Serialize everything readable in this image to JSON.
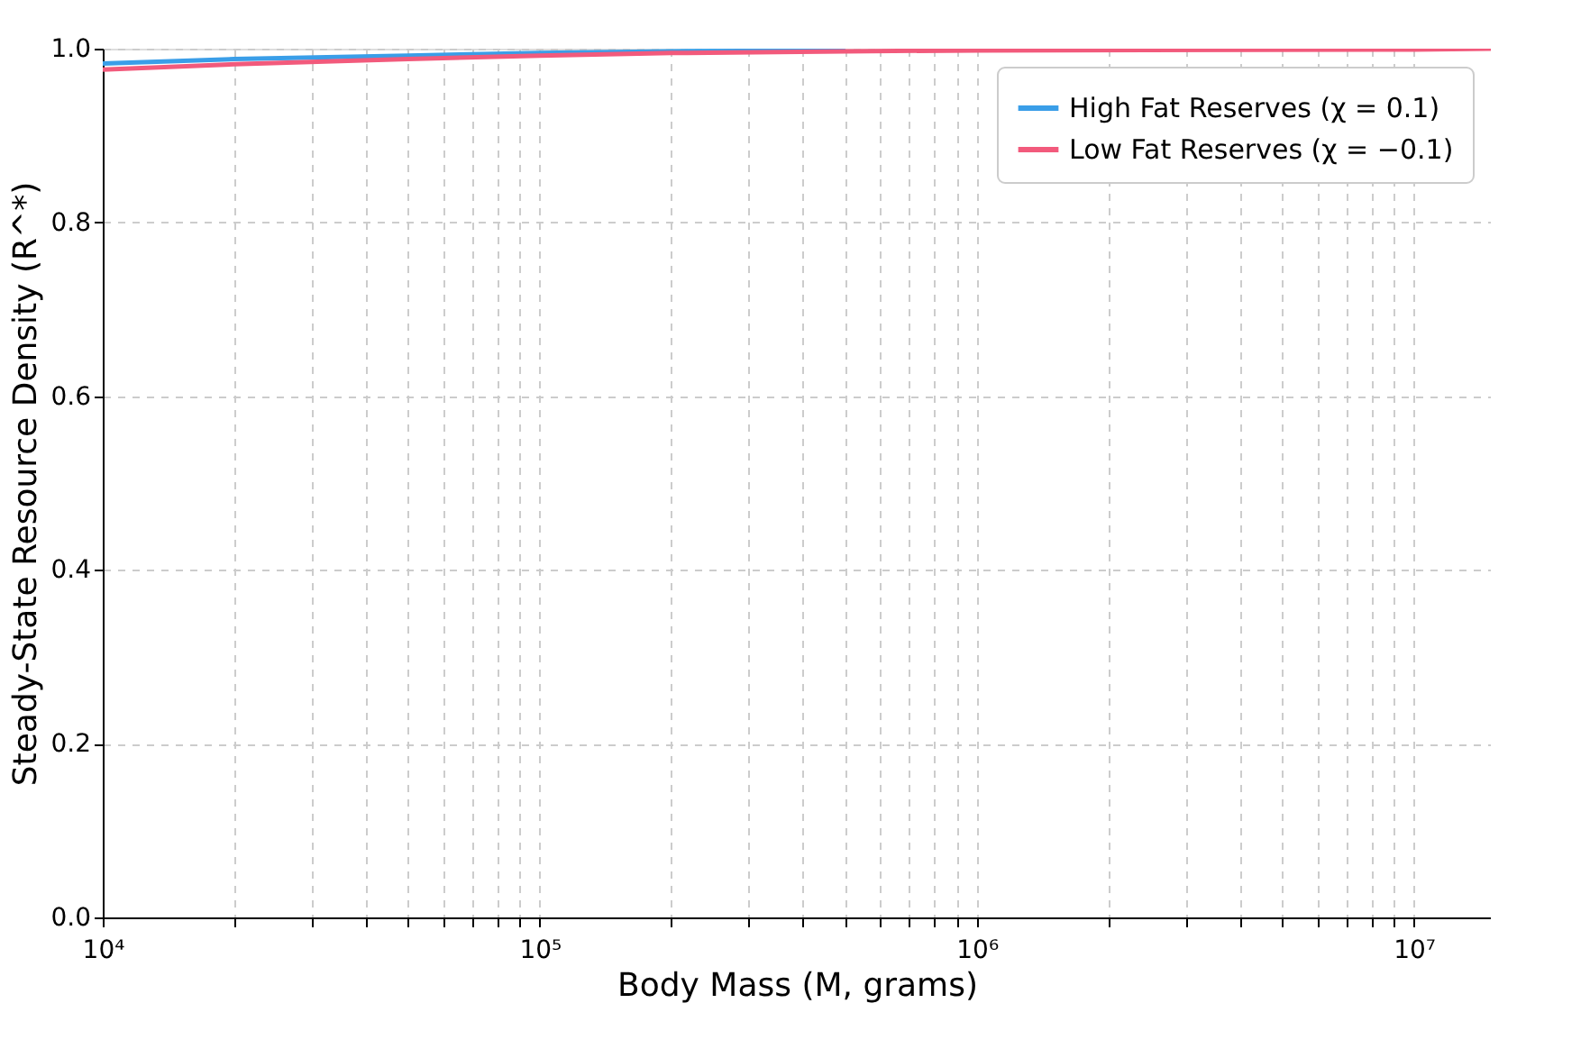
{
  "chart_data": {
    "type": "line",
    "xlabel": "Body Mass (M, grams)",
    "ylabel": "Steady-State Resource Density (R^*)",
    "x": [
      10000,
      20000,
      50000,
      100000,
      200000,
      500000,
      1000000,
      10000000,
      15000000
    ],
    "series": [
      {
        "name": "High Fat Reserves (χ = 0.1)",
        "color": "#3a9ee8",
        "values": [
          0.983,
          0.988,
          0.992,
          0.995,
          0.997,
          0.998,
          null,
          null,
          null
        ]
      },
      {
        "name": "Low Fat Reserves (χ = −0.1)",
        "color": "#f25a7c",
        "values": [
          0.976,
          0.982,
          0.988,
          0.992,
          0.995,
          0.997,
          0.998,
          0.999,
          1.0
        ]
      }
    ],
    "log": "x",
    "xlim": [
      10000,
      15000000
    ],
    "xticks": [
      {
        "value": 10000,
        "label": "10⁴"
      },
      {
        "value": 20000,
        "label": null
      },
      {
        "value": 30000,
        "label": null
      },
      {
        "value": 40000,
        "label": null
      },
      {
        "value": 50000,
        "label": null
      },
      {
        "value": 60000,
        "label": null
      },
      {
        "value": 70000,
        "label": null
      },
      {
        "value": 80000,
        "label": null
      },
      {
        "value": 90000,
        "label": null
      },
      {
        "value": 100000,
        "label": "10⁵"
      },
      {
        "value": 200000,
        "label": null
      },
      {
        "value": 300000,
        "label": null
      },
      {
        "value": 400000,
        "label": null
      },
      {
        "value": 500000,
        "label": null
      },
      {
        "value": 600000,
        "label": null
      },
      {
        "value": 700000,
        "label": null
      },
      {
        "value": 800000,
        "label": null
      },
      {
        "value": 900000,
        "label": null
      },
      {
        "value": 1000000,
        "label": "10⁶"
      },
      {
        "value": 2000000,
        "label": null
      },
      {
        "value": 3000000,
        "label": null
      },
      {
        "value": 4000000,
        "label": null
      },
      {
        "value": 5000000,
        "label": null
      },
      {
        "value": 6000000,
        "label": null
      },
      {
        "value": 7000000,
        "label": null
      },
      {
        "value": 8000000,
        "label": null
      },
      {
        "value": 9000000,
        "label": null
      },
      {
        "value": 10000000,
        "label": "10⁷"
      }
    ],
    "ylim": [
      0,
      1
    ],
    "yticks": [
      {
        "value": 0,
        "label": "0.0"
      },
      {
        "value": 0.2,
        "label": "0.2"
      },
      {
        "value": 0.4,
        "label": "0.4"
      },
      {
        "value": 0.6,
        "label": "0.6"
      },
      {
        "value": 0.8,
        "label": "0.8"
      },
      {
        "value": 1,
        "label": "1.0"
      }
    ],
    "grid": true,
    "legend": "top right",
    "marker": "none",
    "line_style": "solid"
  }
}
